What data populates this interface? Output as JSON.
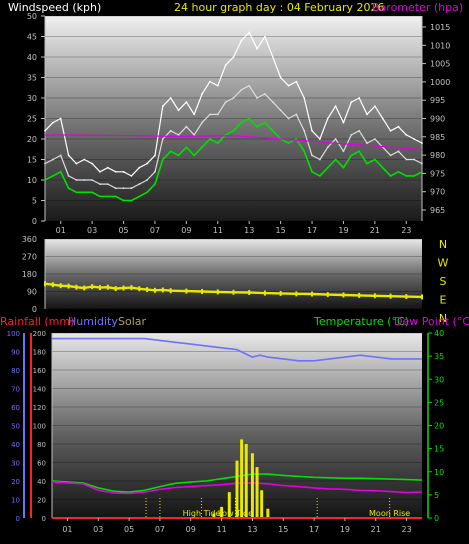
{
  "header": {
    "left_label": "Windspeed (kph)",
    "center_label": "24 hour graph day : 04 February 2026",
    "right_label": "Barometer (hpa)"
  },
  "colors": {
    "bg": "#000000",
    "windspeed": "#ffffff",
    "gust": "#ffffff",
    "average": "#00e000",
    "barometer": "#e000e0",
    "direction": "#e8e800",
    "title": "#e8e800",
    "humidity": "#7070ff",
    "rainfall": "#ff2020",
    "temperature": "#00e000",
    "dew_point": "#e000e0",
    "solar": "#e8e800",
    "axis_text": "#c0c0c0"
  },
  "x_ticks": [
    "01",
    "03",
    "05",
    "07",
    "09",
    "11",
    "13",
    "15",
    "17",
    "19",
    "21",
    "23"
  ],
  "chart_data": [
    {
      "type": "line",
      "name": "wind",
      "ylim": [
        0,
        50
      ],
      "y_ticks": [
        "0",
        "5",
        "10",
        "15",
        "20",
        "25",
        "30",
        "35",
        "40",
        "45",
        "50"
      ],
      "y2lim": [
        962,
        1018
      ],
      "y2_ticks": [
        "965",
        "970",
        "975",
        "980",
        "985",
        "990",
        "995",
        "1000",
        "1005",
        "1010",
        "1015"
      ],
      "xlim": [
        0,
        24
      ],
      "series": [
        {
          "role": "gust",
          "x": [
            0,
            0.5,
            1,
            1.5,
            2,
            2.5,
            3,
            3.5,
            4,
            4.5,
            5,
            5.5,
            6,
            6.5,
            7,
            7.5,
            8,
            8.5,
            9,
            9.5,
            10,
            10.5,
            11,
            11.5,
            12,
            12.5,
            13,
            13.5,
            14,
            14.5,
            15,
            15.5,
            16,
            16.5,
            17,
            17.5,
            18,
            18.5,
            19,
            19.5,
            20,
            20.5,
            21,
            21.5,
            22,
            22.5,
            23,
            23.5,
            24
          ],
          "values": [
            22,
            24,
            25,
            16,
            14,
            15,
            14,
            12,
            13,
            12,
            12,
            11,
            13,
            14,
            16,
            28,
            30,
            27,
            29,
            26,
            31,
            34,
            33,
            38,
            40,
            44,
            46,
            42,
            45,
            40,
            35,
            33,
            34,
            30,
            22,
            20,
            25,
            28,
            24,
            29,
            30,
            26,
            28,
            25,
            22,
            23,
            21,
            20,
            19
          ]
        },
        {
          "role": "speed",
          "x": [
            0,
            0.5,
            1,
            1.5,
            2,
            2.5,
            3,
            3.5,
            4,
            4.5,
            5,
            5.5,
            6,
            6.5,
            7,
            7.5,
            8,
            8.5,
            9,
            9.5,
            10,
            10.5,
            11,
            11.5,
            12,
            12.5,
            13,
            13.5,
            14,
            14.5,
            15,
            15.5,
            16,
            16.5,
            17,
            17.5,
            18,
            18.5,
            19,
            19.5,
            20,
            20.5,
            21,
            21.5,
            22,
            22.5,
            23,
            23.5,
            24
          ],
          "values": [
            14,
            15,
            16,
            11,
            10,
            10,
            10,
            9,
            9,
            8,
            8,
            8,
            9,
            10,
            12,
            20,
            22,
            21,
            23,
            21,
            24,
            26,
            26,
            29,
            30,
            32,
            33,
            30,
            31,
            29,
            27,
            25,
            26,
            22,
            16,
            15,
            18,
            20,
            17,
            21,
            22,
            19,
            20,
            18,
            16,
            17,
            15,
            15,
            14
          ]
        },
        {
          "role": "average",
          "x": [
            0,
            0.5,
            1,
            1.5,
            2,
            2.5,
            3,
            3.5,
            4,
            4.5,
            5,
            5.5,
            6,
            6.5,
            7,
            7.5,
            8,
            8.5,
            9,
            9.5,
            10,
            10.5,
            11,
            11.5,
            12,
            12.5,
            13,
            13.5,
            14,
            14.5,
            15,
            15.5,
            16,
            16.5,
            17,
            17.5,
            18,
            18.5,
            19,
            19.5,
            20,
            20.5,
            21,
            21.5,
            22,
            22.5,
            23,
            23.5,
            24
          ],
          "values": [
            10,
            11,
            12,
            8,
            7,
            7,
            7,
            6,
            6,
            6,
            5,
            5,
            6,
            7,
            9,
            15,
            17,
            16,
            18,
            16,
            18,
            20,
            19,
            21,
            22,
            24,
            25,
            23,
            24,
            22,
            20,
            19,
            20,
            17,
            12,
            11,
            13,
            15,
            13,
            16,
            17,
            14,
            15,
            13,
            11,
            12,
            11,
            11,
            12
          ]
        },
        {
          "role": "barometer",
          "x": [
            0,
            2,
            4,
            6,
            8,
            10,
            12,
            14,
            16,
            18,
            20,
            22,
            24
          ],
          "values": [
            985.5,
            985.5,
            985.4,
            985.3,
            985.1,
            985.2,
            985.3,
            984.7,
            984.1,
            983.4,
            982.8,
            982.2,
            981.5
          ]
        }
      ]
    },
    {
      "type": "scatter",
      "name": "direction",
      "ylim": [
        0,
        360
      ],
      "y_ticks": [
        "0",
        "90",
        "180",
        "270",
        "360"
      ],
      "compass": [
        "N",
        "W",
        "S",
        "E",
        "N"
      ],
      "xlim": [
        0,
        24
      ],
      "series": [
        {
          "role": "direction",
          "x": [
            0,
            0.5,
            1,
            1.5,
            2,
            2.5,
            3,
            3.5,
            4,
            4.5,
            5,
            5.5,
            6,
            6.5,
            7,
            7.5,
            8,
            9,
            10,
            11,
            12,
            13,
            14,
            15,
            16,
            17,
            18,
            19,
            20,
            21,
            22,
            23,
            24
          ],
          "values": [
            130,
            125,
            120,
            118,
            112,
            108,
            115,
            110,
            112,
            105,
            108,
            110,
            104,
            100,
            96,
            98,
            94,
            92,
            90,
            88,
            86,
            85,
            82,
            80,
            78,
            77,
            74,
            72,
            70,
            68,
            66,
            64,
            62
          ]
        }
      ]
    },
    {
      "type": "line",
      "name": "climate",
      "left_labels": {
        "rainfall": "Rainfall (mm)",
        "humidity": "Humidity",
        "solar": "Solar"
      },
      "right_labels": {
        "temperature": "Temperature (°C)",
        "dew_point": "Dew Point (°C)"
      },
      "ylim": [
        0,
        100
      ],
      "y_ticks": [
        "0",
        "10",
        "20",
        "30",
        "40",
        "50",
        "60",
        "70",
        "80",
        "90",
        "100"
      ],
      "solar_ticks": [
        "0",
        "20",
        "40",
        "60",
        "80",
        "100",
        "120",
        "140",
        "160",
        "180",
        "200"
      ],
      "y2lim": [
        0,
        40
      ],
      "y2_ticks": [
        "0",
        "5",
        "10",
        "15",
        "20",
        "25",
        "30",
        "35",
        "40"
      ],
      "xlim": [
        0,
        24
      ],
      "series": [
        {
          "role": "humidity",
          "x": [
            0,
            2,
            4,
            6,
            7,
            8,
            9,
            10,
            11,
            12,
            12.5,
            13,
            13.5,
            14,
            15,
            16,
            17,
            18,
            19,
            20,
            21,
            22,
            23,
            24
          ],
          "values": [
            97,
            97,
            97,
            97,
            96,
            95,
            94,
            93,
            92,
            91,
            89,
            87,
            88,
            87,
            86,
            85,
            85,
            86,
            87,
            88,
            87,
            86,
            86,
            86
          ]
        },
        {
          "role": "temperature",
          "x": [
            0,
            1,
            2,
            3,
            4,
            5,
            6,
            7,
            8,
            9,
            10,
            11,
            12,
            13,
            14,
            15,
            16,
            17,
            18,
            19,
            20,
            21,
            22,
            23,
            24
          ],
          "values": [
            8.0,
            7.8,
            7.6,
            6.5,
            5.8,
            5.6,
            6.0,
            6.8,
            7.5,
            7.8,
            8.0,
            8.5,
            9.0,
            9.5,
            9.5,
            9.2,
            9.0,
            8.8,
            8.7,
            8.6,
            8.6,
            8.5,
            8.4,
            8.3,
            8.2
          ]
        },
        {
          "role": "dew_point",
          "x": [
            0,
            1,
            2,
            3,
            4,
            5,
            6,
            7,
            8,
            9,
            10,
            11,
            12,
            13,
            14,
            15,
            16,
            17,
            18,
            19,
            20,
            21,
            22,
            23,
            24
          ],
          "values": [
            7.8,
            7.6,
            7.4,
            6.0,
            5.4,
            5.3,
            5.6,
            6.2,
            6.6,
            6.8,
            7.0,
            7.2,
            7.5,
            7.6,
            7.4,
            7.0,
            6.8,
            6.5,
            6.3,
            6.2,
            6.0,
            5.9,
            5.7,
            5.5,
            5.6
          ]
        },
        {
          "role": "solar",
          "x": [
            10.5,
            11,
            11.5,
            12,
            12.3,
            12.6,
            13,
            13.3,
            13.6,
            14
          ],
          "values": [
            5,
            12,
            28,
            62,
            85,
            80,
            70,
            55,
            30,
            10
          ]
        },
        {
          "role": "rainfall",
          "x": [
            0,
            24
          ],
          "values": [
            0,
            0
          ]
        }
      ],
      "markers": [
        {
          "x": 6.1,
          "label": ""
        },
        {
          "x": 7.0,
          "label": ""
        },
        {
          "x": 9.7,
          "label": "High Tide"
        },
        {
          "x": 11.9,
          "label": "Low Tide"
        },
        {
          "x": 17.2,
          "label": ""
        },
        {
          "x": 21.9,
          "label": "Moon Rise"
        }
      ]
    }
  ]
}
